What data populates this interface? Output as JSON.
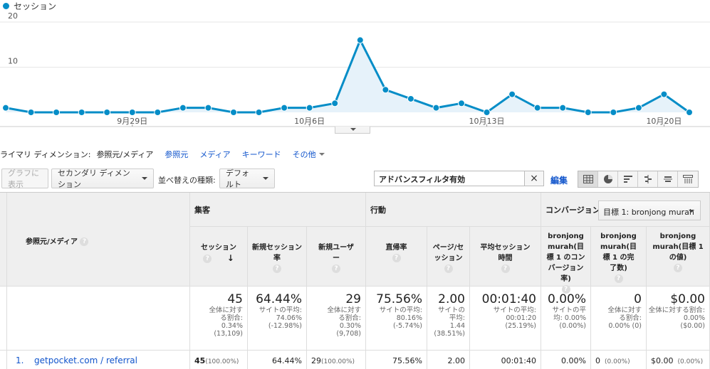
{
  "legend": {
    "label": "セッション",
    "color": "#058dc7"
  },
  "chart_data": {
    "type": "area",
    "series": [
      {
        "name": "セッション",
        "values": [
          1,
          0,
          0,
          0,
          0,
          0,
          0,
          1,
          1,
          0,
          0,
          1,
          1,
          2,
          16,
          5,
          3,
          1,
          2,
          0,
          4,
          1,
          1,
          0,
          0,
          1,
          4,
          0
        ]
      }
    ],
    "ylim": [
      0,
      20
    ],
    "yticks": [
      "20",
      "10"
    ],
    "xtick_labels": [
      "9月29日",
      "10月6日",
      "10月13日",
      "10月20日"
    ],
    "xtick_index": [
      5,
      12,
      19,
      26
    ],
    "grid": true
  },
  "dimension_bar": {
    "label": "ライマリ ディメンション:",
    "current": "参照元/メディア",
    "links": [
      "参照元",
      "メディア",
      "キーワード"
    ],
    "other": "その他"
  },
  "toolbar": {
    "graph_button": "グラフに表示",
    "secondary_dim": "セカンダリ ディメンション",
    "sort_label": "並べ替えの種類:",
    "sort_value": "デフォルト",
    "filter_text": "アドバンスフィルタ有効",
    "clear_icon": "×",
    "edit": "編集"
  },
  "table": {
    "dim_header": "参照元/メディア",
    "groups": {
      "acquisition": "集客",
      "behavior": "行動",
      "conversion": "コンバージョン"
    },
    "goal_select": "目標 1: bronjong murah",
    "columns": [
      [
        "セッション"
      ],
      [
        "新規セッション",
        "率"
      ],
      [
        "新規ユーザ",
        "ー"
      ],
      [
        "直帰率"
      ],
      [
        "ページ/セ",
        "ッション"
      ],
      [
        "平均セッション",
        "時間"
      ],
      [
        "bronjong",
        "murah(目",
        "標 1 のコン",
        "バージョン",
        "率)"
      ],
      [
        "bronjong",
        "murah(目",
        "標 1 の完",
        "了数)"
      ],
      [
        "bronjong",
        "murah(目標 1",
        "の値)"
      ]
    ],
    "summary": [
      {
        "big": "45",
        "sub": [
          "全体に対す",
          "る割合:",
          "0.34%",
          "(13,109)"
        ]
      },
      {
        "big": "64.44%",
        "sub": [
          "サイトの平均:",
          "74.06%",
          "(-12.98%)"
        ]
      },
      {
        "big": "29",
        "sub": [
          "全体に対す",
          "る割合:",
          "0.30%",
          "(9,708)"
        ]
      },
      {
        "big": "75.56%",
        "sub": [
          "サイトの平均:",
          "80.16%",
          "(-5.74%)"
        ]
      },
      {
        "big": "2.00",
        "sub": [
          "サイトの",
          "平均:",
          "1.44",
          "(38.51%)"
        ]
      },
      {
        "big": "00:01:40",
        "sub": [
          "サイトの平均:",
          "00:01:20",
          "(25.19%)"
        ]
      },
      {
        "big": "0.00%",
        "sub": [
          "サイトの平",
          "均: 0.00%",
          "(0.00%)"
        ]
      },
      {
        "big": "0",
        "sub": [
          "全体に対す",
          "る割合:",
          "0.00% (0)"
        ]
      },
      {
        "big": "$0.00",
        "sub": [
          "全体に対する割合:",
          "0.00%",
          "($0.00)"
        ]
      }
    ],
    "row1": {
      "index": "1.",
      "name": "getpocket.com / referral",
      "cells": [
        {
          "main": "45",
          "sub": "(100.00%)"
        },
        {
          "main": "64.44%",
          "sub": ""
        },
        {
          "main": "29",
          "sub": "(100.00%)"
        },
        {
          "main": "75.56%",
          "sub": ""
        },
        {
          "main": "2.00",
          "sub": ""
        },
        {
          "main": "00:01:40",
          "sub": ""
        },
        {
          "main": "0.00%",
          "sub": ""
        },
        {
          "main": "0",
          "sub": "(0.00%)"
        },
        {
          "main": "$0.00",
          "sub": "(0.00%)"
        }
      ]
    }
  }
}
